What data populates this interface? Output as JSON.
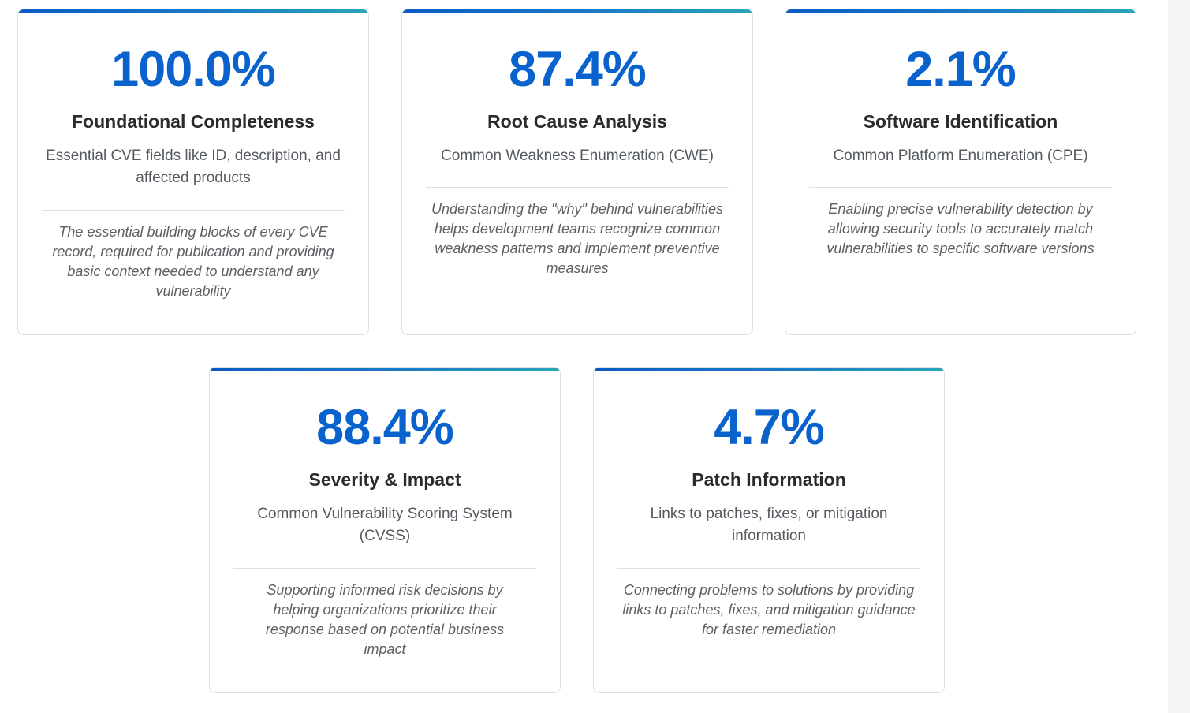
{
  "colors": {
    "accent": "#0a63cc",
    "gradient_start": "#0a5bc4",
    "gradient_end": "#2aa6b6",
    "title": "#2b2b2b",
    "subtitle": "#555a60",
    "description": "#5c5f63",
    "border": "#dcdfe3"
  },
  "cards": [
    {
      "percent": "100.0%",
      "title": "Foundational Completeness",
      "subtitle": "Essential CVE fields like ID, description, and affected products",
      "description": "The essential building blocks of every CVE record, required for publication and providing basic context needed to understand any vulnerability"
    },
    {
      "percent": "87.4%",
      "title": "Root Cause Analysis",
      "subtitle": "Common Weakness Enumeration (CWE)",
      "description": "Understanding the \"why\" behind vulnerabilities helps development teams recognize common weakness patterns and implement preventive measures"
    },
    {
      "percent": "2.1%",
      "title": "Software Identification",
      "subtitle": "Common Platform Enumeration (CPE)",
      "description": "Enabling precise vulnerability detection by allowing security tools to accurately match vulnerabilities to specific software versions"
    },
    {
      "percent": "88.4%",
      "title": "Severity & Impact",
      "subtitle": "Common Vulnerability Scoring System (CVSS)",
      "description": "Supporting informed risk decisions by helping organizations prioritize their response based on potential business impact"
    },
    {
      "percent": "4.7%",
      "title": "Patch Information",
      "subtitle": "Links to patches, fixes, or mitigation information",
      "description": "Connecting problems to solutions by providing links to patches, fixes, and mitigation guidance for faster remediation"
    }
  ]
}
